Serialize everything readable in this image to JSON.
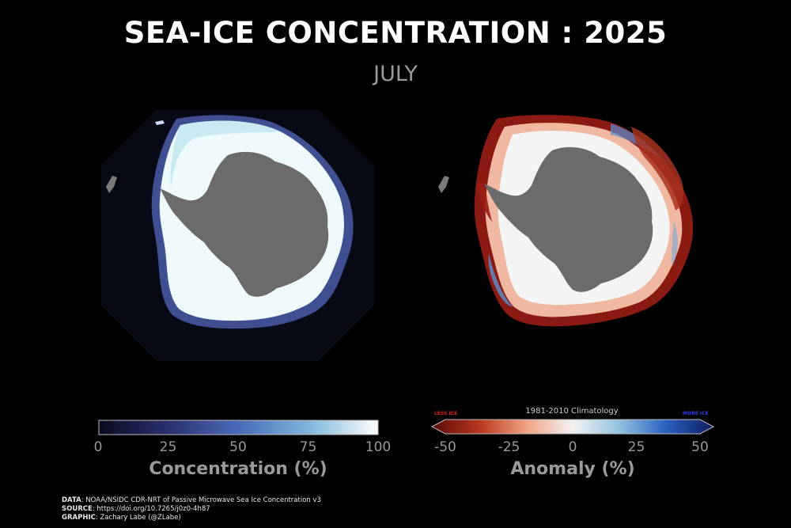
{
  "header": {
    "title": "SEA-ICE CONCENTRATION : 2025",
    "subtitle": "JULY"
  },
  "maps": {
    "concentration": {
      "land_color": "#6b6b6b",
      "ocean_color": "#070a14"
    },
    "anomaly": {
      "land_color": "#6b6b6b",
      "no_ice_color": "#000000"
    }
  },
  "concentration_colorbar": {
    "ticks": [
      "0",
      "25",
      "50",
      "75",
      "100"
    ],
    "tick_values": [
      0,
      25,
      50,
      75,
      100
    ],
    "range": [
      0,
      100
    ],
    "title": "Concentration (%)",
    "colors": [
      "#0a0a1e",
      "#2a3070",
      "#4a6ab8",
      "#7fb6dc",
      "#ffffff"
    ]
  },
  "anomaly_colorbar": {
    "ticks": [
      "-50",
      "-25",
      "0",
      "25",
      "50"
    ],
    "tick_values": [
      -50,
      -25,
      0,
      25,
      50
    ],
    "range": [
      -50,
      50
    ],
    "title": "Anomaly (%)",
    "climatology_label": "1981-2010 Climatology",
    "less_label": "LESS ICE",
    "more_label": "MORE ICE",
    "less_color": "#e0201a",
    "more_color": "#2a40e8",
    "colors": [
      "#5a0a0a",
      "#b8361e",
      "#f0a080",
      "#f2f2f2",
      "#90c0e0",
      "#2a60c0",
      "#101c60"
    ]
  },
  "credits": {
    "data_label": "DATA",
    "data_text": ": NOAA/NSIDC CDR-NRT of Passive Microwave Sea Ice Concentration v3",
    "source_label": "SOURCE",
    "source_text": ": https://doi.org/10.7265/j0z0-4h87",
    "graphic_label": "GRAPHIC",
    "graphic_text": ": Zachary Labe (@ZLabe)"
  }
}
